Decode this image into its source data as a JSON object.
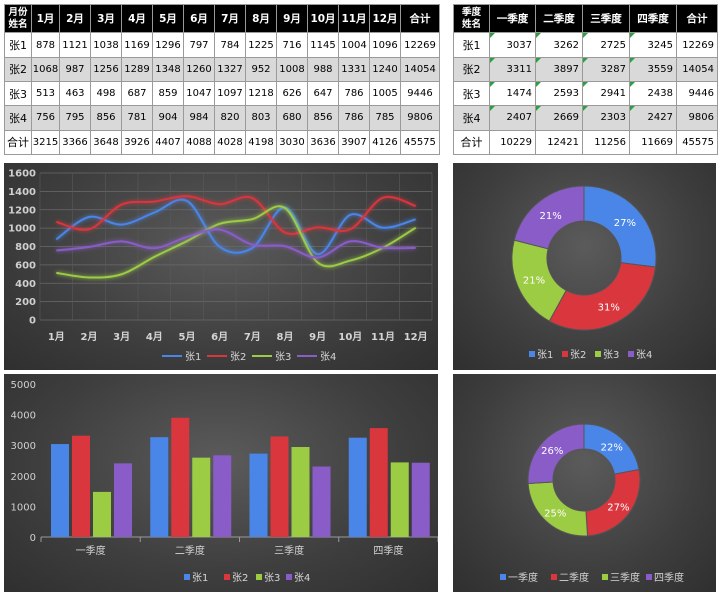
{
  "monthly_table": {
    "header_corner": [
      "月份",
      "姓名"
    ],
    "columns": [
      "1月",
      "2月",
      "3月",
      "4月",
      "5月",
      "6月",
      "7月",
      "8月",
      "9月",
      "10月",
      "11月",
      "12月",
      "合计"
    ],
    "rows": [
      {
        "name": "张1",
        "values": [
          878,
          1121,
          1038,
          1169,
          1296,
          797,
          784,
          1225,
          716,
          1145,
          1004,
          1096,
          12269
        ]
      },
      {
        "name": "张2",
        "values": [
          1068,
          987,
          1256,
          1289,
          1348,
          1260,
          1327,
          952,
          1008,
          988,
          1331,
          1240,
          14054
        ]
      },
      {
        "name": "张3",
        "values": [
          513,
          463,
          498,
          687,
          859,
          1047,
          1097,
          1218,
          626,
          647,
          786,
          1005,
          9446
        ]
      },
      {
        "name": "张4",
        "values": [
          756,
          795,
          856,
          781,
          904,
          984,
          820,
          803,
          680,
          856,
          786,
          785,
          9806
        ]
      },
      {
        "name": "合计",
        "values": [
          3215,
          3366,
          3648,
          3926,
          4407,
          4088,
          4028,
          4198,
          3030,
          3636,
          3907,
          4126,
          45575
        ]
      }
    ]
  },
  "quarter_table": {
    "header_corner": [
      "季度",
      "姓名"
    ],
    "columns": [
      "一季度",
      "二季度",
      "三季度",
      "四季度",
      "合计"
    ],
    "rows": [
      {
        "name": "张1",
        "values": [
          3037,
          3262,
          2725,
          3245,
          12269
        ]
      },
      {
        "name": "张2",
        "values": [
          3311,
          3897,
          3287,
          3559,
          14054
        ]
      },
      {
        "name": "张3",
        "values": [
          1474,
          2593,
          2941,
          2438,
          9446
        ]
      },
      {
        "name": "张4",
        "values": [
          2407,
          2669,
          2303,
          2427,
          9806
        ]
      },
      {
        "name": "合计",
        "values": [
          10229,
          12421,
          11256,
          11669,
          45575
        ]
      }
    ]
  },
  "colors": {
    "张1": "#4a86e8",
    "张2": "#d9363e",
    "张3": "#9ccc44",
    "张4": "#8a5cc8"
  },
  "chart_data": [
    {
      "type": "line",
      "x": [
        "1月",
        "2月",
        "3月",
        "4月",
        "5月",
        "6月",
        "7月",
        "8月",
        "9月",
        "10月",
        "11月",
        "12月"
      ],
      "ylim": [
        0,
        1600
      ],
      "yticks": [
        0,
        200,
        400,
        600,
        800,
        1000,
        1200,
        1400,
        1600
      ],
      "grid": true,
      "legend": "bottom",
      "series": [
        {
          "name": "张1",
          "values": [
            878,
            1121,
            1038,
            1169,
            1296,
            797,
            784,
            1225,
            716,
            1145,
            1004,
            1096
          ]
        },
        {
          "name": "张2",
          "values": [
            1068,
            987,
            1256,
            1289,
            1348,
            1260,
            1327,
            952,
            1008,
            988,
            1331,
            1240
          ]
        },
        {
          "name": "张3",
          "values": [
            513,
            463,
            498,
            687,
            859,
            1047,
            1097,
            1218,
            626,
            647,
            786,
            1005
          ]
        },
        {
          "name": "张4",
          "values": [
            756,
            795,
            856,
            781,
            904,
            984,
            820,
            803,
            680,
            856,
            786,
            785
          ]
        }
      ]
    },
    {
      "type": "pie",
      "donut": true,
      "legend": "bottom",
      "labels": [
        "张1",
        "张2",
        "张3",
        "张4"
      ],
      "values": [
        27,
        31,
        21,
        21
      ],
      "value_labels": [
        "27%",
        "31%",
        "21%",
        "21%"
      ]
    },
    {
      "type": "bar",
      "categories": [
        "一季度",
        "二季度",
        "三季度",
        "四季度"
      ],
      "ylim": [
        0,
        5000
      ],
      "yticks": [
        0,
        1000,
        2000,
        3000,
        4000,
        5000
      ],
      "legend": "bottom",
      "series": [
        {
          "name": "张1",
          "values": [
            3037,
            3262,
            2725,
            3245
          ]
        },
        {
          "name": "张2",
          "values": [
            3311,
            3897,
            3287,
            3559
          ]
        },
        {
          "name": "张3",
          "values": [
            1474,
            2593,
            2941,
            2438
          ]
        },
        {
          "name": "张4",
          "values": [
            2407,
            2669,
            2303,
            2427
          ]
        }
      ]
    },
    {
      "type": "pie",
      "donut": true,
      "legend": "bottom",
      "labels": [
        "一季度",
        "二季度",
        "三季度",
        "四季度"
      ],
      "values": [
        22,
        27,
        25,
        26
      ],
      "value_labels": [
        "22%",
        "27%",
        "25%",
        "26%"
      ]
    }
  ]
}
